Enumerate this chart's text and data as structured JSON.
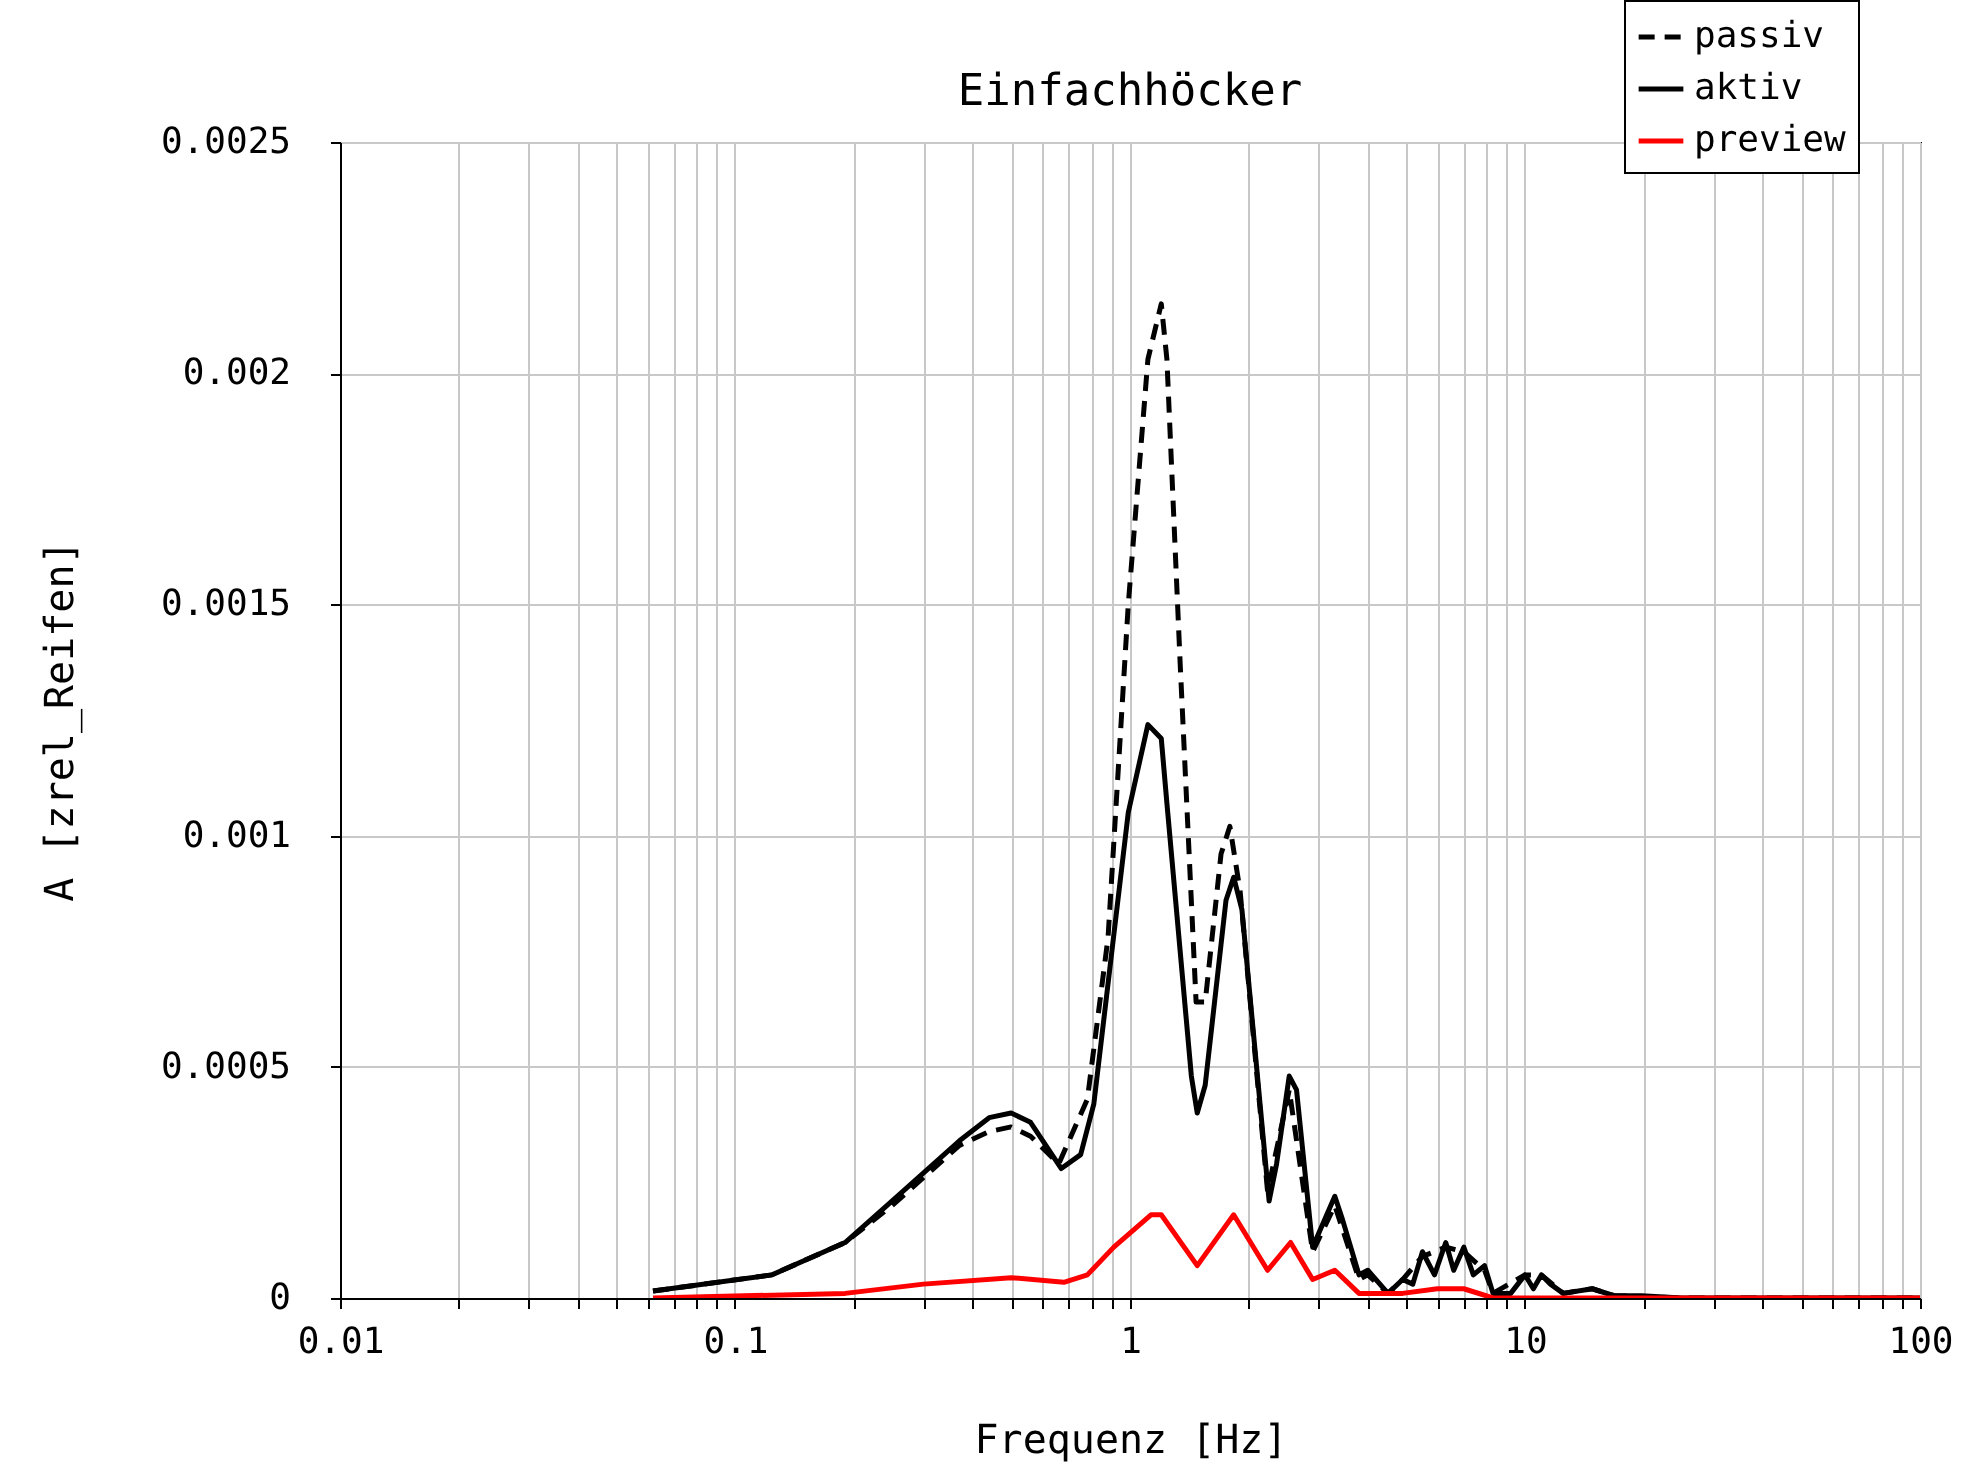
{
  "chart_data": {
    "type": "line",
    "title": "Einfachhöcker",
    "xlabel": "Frequenz [Hz]",
    "ylabel": "A [zrel_Reifen]",
    "log": "x",
    "grid": true,
    "legend": "top right",
    "xlim": [
      0.01,
      100
    ],
    "ylim": [
      0,
      0.0025
    ],
    "xticks": [
      0.01,
      {
        "value": 0.02,
        "label": null
      },
      {
        "value": 0.03,
        "label": null
      },
      {
        "value": 0.04,
        "label": null
      },
      {
        "value": 0.05,
        "label": null
      },
      {
        "value": 0.06,
        "label": null
      },
      {
        "value": 0.07,
        "label": null
      },
      {
        "value": 0.08,
        "label": null
      },
      {
        "value": 0.09,
        "label": null
      },
      0.1,
      {
        "value": 0.2,
        "label": null
      },
      {
        "value": 0.3,
        "label": null
      },
      {
        "value": 0.4,
        "label": null
      },
      {
        "value": 0.5,
        "label": null
      },
      {
        "value": 0.6,
        "label": null
      },
      {
        "value": 0.7,
        "label": null
      },
      {
        "value": 0.8,
        "label": null
      },
      {
        "value": 0.9,
        "label": null
      },
      1,
      {
        "value": 2,
        "label": null
      },
      {
        "value": 3,
        "label": null
      },
      {
        "value": 4,
        "label": null
      },
      {
        "value": 5,
        "label": null
      },
      {
        "value": 6,
        "label": null
      },
      {
        "value": 7,
        "label": null
      },
      {
        "value": 8,
        "label": null
      },
      {
        "value": 9,
        "label": null
      },
      10,
      {
        "value": 20,
        "label": null
      },
      {
        "value": 30,
        "label": null
      },
      {
        "value": 40,
        "label": null
      },
      {
        "value": 50,
        "label": null
      },
      {
        "value": 60,
        "label": null
      },
      {
        "value": 70,
        "label": null
      },
      {
        "value": 80,
        "label": null
      },
      {
        "value": 90,
        "label": null
      },
      100
    ],
    "yticks": [
      0,
      0.0005,
      0.001,
      0.0015,
      0.002,
      0.0025
    ],
    "series": [
      {
        "name": "passiv",
        "color": "#000000",
        "line_style": "dashed",
        "x": [
          0.062,
          0.124,
          0.19,
          0.25,
          0.37,
          0.44,
          0.5,
          0.56,
          0.66,
          0.78,
          0.88,
          0.99,
          1.11,
          1.2,
          1.24,
          1.34,
          1.47,
          1.55,
          1.7,
          1.79,
          1.9,
          2.23,
          2.53,
          2.9,
          3.3,
          3.8,
          4.0,
          4.5,
          4.9,
          5.5,
          6.3,
          7.0,
          7.9,
          8.3,
          10,
          11,
          12.5,
          14.8,
          16.8,
          25,
          100
        ],
        "values": [
          1.5e-05,
          5e-05,
          0.00012,
          0.0002,
          0.00033,
          0.00036,
          0.00037,
          0.00035,
          0.00029,
          0.00043,
          0.00078,
          0.0015,
          0.00203,
          0.00215,
          0.00203,
          0.00137,
          0.00064,
          0.00064,
          0.00096,
          0.00102,
          0.00088,
          0.00023,
          0.00045,
          0.0001,
          0.0002,
          4e-05,
          5e-05,
          1e-05,
          4e-05,
          9e-05,
          0.00011,
          0.0001,
          6e-05,
          1e-05,
          5e-05,
          5e-05,
          1e-05,
          2e-05,
          5e-06,
          0,
          0
        ]
      },
      {
        "name": "aktiv",
        "color": "#000000",
        "line_style": "solid",
        "x": [
          0.062,
          0.124,
          0.19,
          0.25,
          0.37,
          0.44,
          0.5,
          0.56,
          0.67,
          0.75,
          0.81,
          0.99,
          1.11,
          1.2,
          1.24,
          1.43,
          1.48,
          1.55,
          1.75,
          1.83,
          1.92,
          2.25,
          2.35,
          2.53,
          2.64,
          2.9,
          3.3,
          3.45,
          3.8,
          4.0,
          4.5,
          4.9,
          5.2,
          5.5,
          5.9,
          6.3,
          6.6,
          7.0,
          7.4,
          7.9,
          8.3,
          9.2,
          10,
          10.5,
          11,
          11.6,
          12.5,
          14.8,
          16.8,
          19.7,
          25,
          100
        ],
        "values": [
          1.5e-05,
          5e-05,
          0.00012,
          0.00021,
          0.00034,
          0.00039,
          0.0004,
          0.00038,
          0.00028,
          0.00031,
          0.00042,
          0.00105,
          0.00124,
          0.00121,
          0.00107,
          0.00048,
          0.0004,
          0.00046,
          0.00086,
          0.00091,
          0.00084,
          0.00021,
          0.00029,
          0.00048,
          0.00045,
          0.00011,
          0.00022,
          0.00017,
          5e-05,
          6e-05,
          1e-05,
          4e-05,
          3e-05,
          0.0001,
          5e-05,
          0.00012,
          6e-05,
          0.00011,
          5e-05,
          7e-05,
          1e-05,
          1e-05,
          5e-05,
          2e-05,
          5e-05,
          3e-05,
          1e-05,
          2e-05,
          5e-06,
          5e-06,
          0,
          0
        ]
      },
      {
        "name": "preview",
        "color": "#ff0000",
        "line_style": "solid",
        "x": [
          0.062,
          0.19,
          0.3,
          0.5,
          0.68,
          0.78,
          0.91,
          1.13,
          1.2,
          1.48,
          1.83,
          2.23,
          2.55,
          2.9,
          3.3,
          3.8,
          4.9,
          6.0,
          7.0,
          8.3,
          100
        ],
        "values": [
          0,
          1e-05,
          3e-05,
          4.4e-05,
          3.4e-05,
          5e-05,
          0.00011,
          0.00018,
          0.00018,
          7e-05,
          0.00018,
          6e-05,
          0.00012,
          4e-05,
          6e-05,
          1e-05,
          1e-05,
          2e-05,
          2e-05,
          0,
          0
        ]
      }
    ]
  }
}
